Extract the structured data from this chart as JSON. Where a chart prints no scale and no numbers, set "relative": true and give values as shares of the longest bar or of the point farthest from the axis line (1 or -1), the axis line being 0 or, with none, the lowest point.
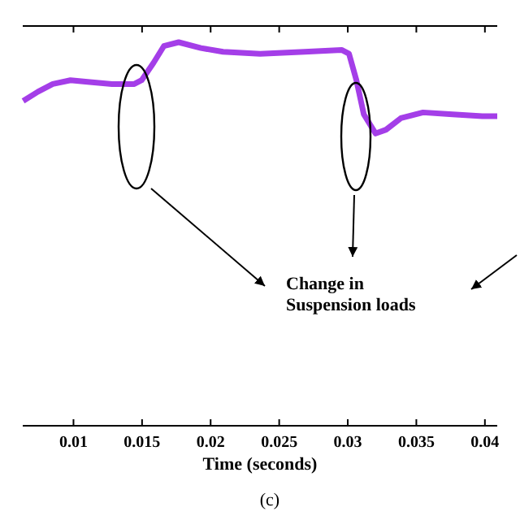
{
  "chart_data": {
    "type": "line",
    "relative": true,
    "xlabel": "Time (seconds)",
    "xlim": [
      0.0063,
      0.0409
    ],
    "xticks": [
      0.01,
      0.015,
      0.02,
      0.025,
      0.03,
      0.035,
      0.04
    ],
    "x": [
      0.00633,
      0.00741,
      0.00849,
      0.00978,
      0.01119,
      0.01281,
      0.01443,
      0.01497,
      0.01583,
      0.01659,
      0.01767,
      0.01929,
      0.02091,
      0.02361,
      0.02685,
      0.02955,
      0.03009,
      0.03063,
      0.03117,
      0.03203,
      0.03279,
      0.03387,
      0.03549,
      0.03765,
      0.03981,
      0.0409
    ],
    "series": [
      {
        "color": "#a43ee8",
        "values": [
          0.847,
          0.871,
          0.891,
          0.901,
          0.896,
          0.891,
          0.891,
          0.901,
          0.946,
          0.99,
          1,
          0.985,
          0.975,
          0.97,
          0.975,
          0.98,
          0.97,
          0.901,
          0.812,
          0.762,
          0.772,
          0.802,
          0.817,
          0.812,
          0.807,
          0.807
        ]
      }
    ],
    "annotations": [
      "Change in Suspension loads",
      "(c)"
    ],
    "grid": false
  }
}
